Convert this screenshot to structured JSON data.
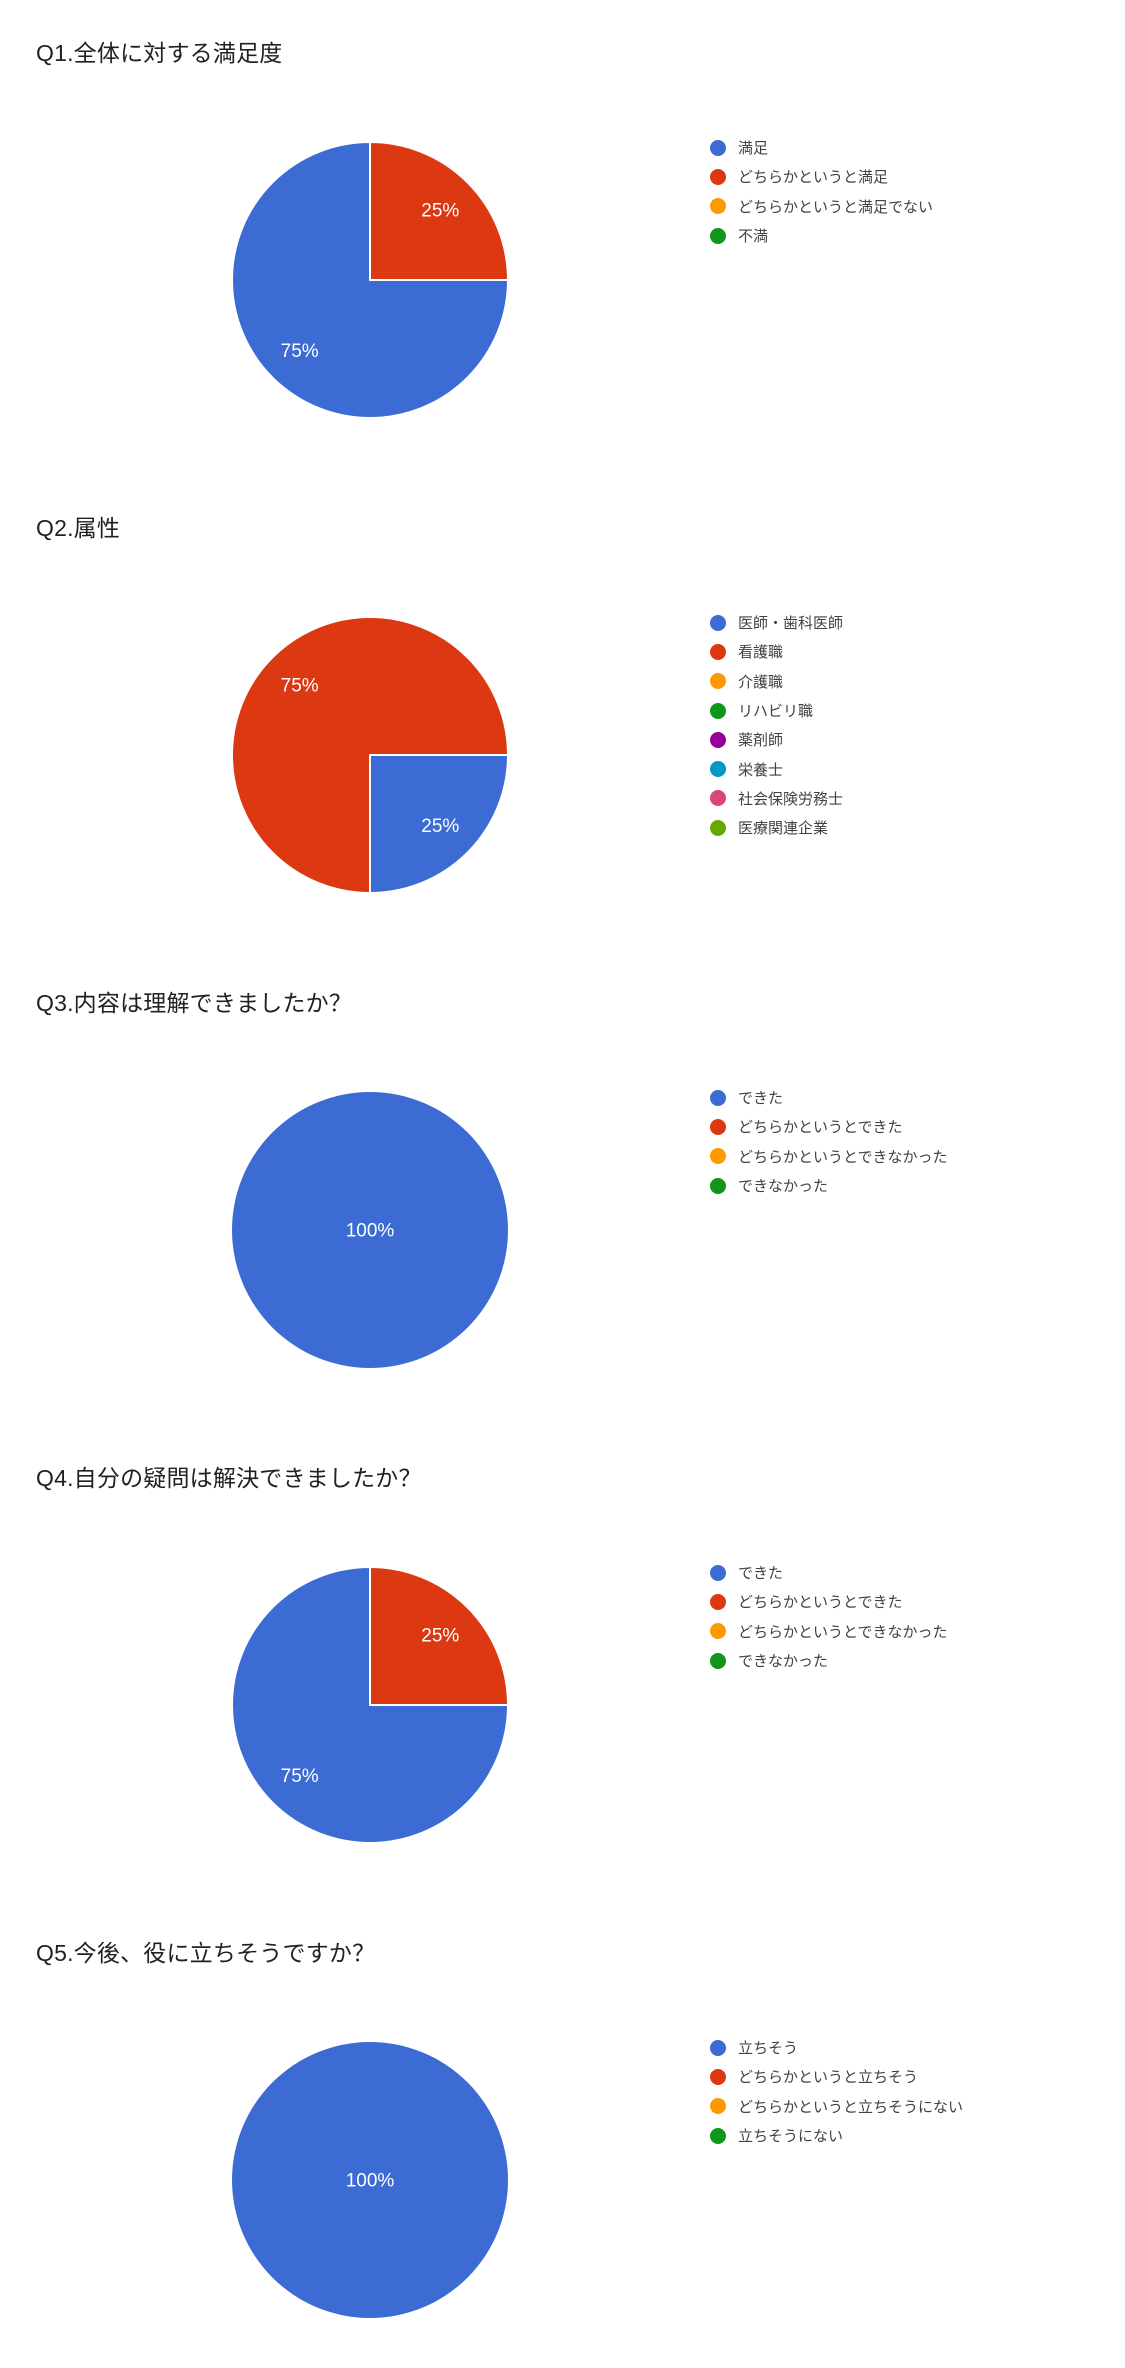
{
  "page": {
    "background_color": "#ffffff",
    "title_text_color": "#212121",
    "legend_text_color": "#424242",
    "slice_label_color": "#ffffff"
  },
  "chart_data": [
    {
      "type": "pie",
      "title": "Q1.全体に対する満足度",
      "legend_position": "right",
      "categories": [
        "満足",
        "どちらかというと満足",
        "どちらかというと満足でない",
        "不満"
      ],
      "values_pct": [
        75,
        25,
        0,
        0
      ],
      "colors": [
        "#3c6bd4",
        "#dc3912",
        "#ff9900",
        "#109618"
      ],
      "slices": [
        {
          "category": "満足",
          "pct": 75,
          "color": "#3c6bd4",
          "start_deg": 90,
          "sweep_deg": 270,
          "label": "75%",
          "label_angle_deg": 225,
          "label_r_frac": 0.72
        },
        {
          "category": "どちらかというと満足",
          "pct": 25,
          "color": "#dc3912",
          "start_deg": 0,
          "sweep_deg": 90,
          "label": "25%",
          "label_angle_deg": 45,
          "label_r_frac": 0.72
        }
      ]
    },
    {
      "type": "pie",
      "title": "Q2.属性",
      "legend_position": "right",
      "categories": [
        "医師・歯科医師",
        "看護職",
        "介護職",
        "リハビリ職",
        "薬剤師",
        "栄養士",
        "社会保険労務士",
        "医療関連企業"
      ],
      "values_pct": [
        25,
        75,
        0,
        0,
        0,
        0,
        0,
        0
      ],
      "colors": [
        "#3c6bd4",
        "#dc3912",
        "#ff9900",
        "#109618",
        "#990099",
        "#0099c6",
        "#dd4477",
        "#66aa00"
      ],
      "slices": [
        {
          "category": "看護職",
          "pct": 75,
          "color": "#dc3912",
          "start_deg": 180,
          "sweep_deg": 270,
          "label": "75%",
          "label_angle_deg": 315,
          "label_r_frac": 0.72
        },
        {
          "category": "医師・歯科医師",
          "pct": 25,
          "color": "#3c6bd4",
          "start_deg": 90,
          "sweep_deg": 90,
          "label": "25%",
          "label_angle_deg": 135,
          "label_r_frac": 0.72
        }
      ]
    },
    {
      "type": "pie",
      "title": "Q3.内容は理解できましたか？",
      "legend_position": "right",
      "categories": [
        "できた",
        "どちらかというとできた",
        "どちらかというとできなかった",
        "できなかった"
      ],
      "values_pct": [
        100,
        0,
        0,
        0
      ],
      "colors": [
        "#3c6bd4",
        "#dc3912",
        "#ff9900",
        "#109618"
      ],
      "slices": [
        {
          "category": "できた",
          "pct": 100,
          "color": "#3c6bd4",
          "start_deg": 0,
          "sweep_deg": 360,
          "label": "100%",
          "label_angle_deg": 0,
          "label_r_frac": 0
        }
      ]
    },
    {
      "type": "pie",
      "title": "Q4.自分の疑問は解決できましたか？",
      "legend_position": "right",
      "categories": [
        "できた",
        "どちらかというとできた",
        "どちらかというとできなかった",
        "できなかった"
      ],
      "values_pct": [
        75,
        25,
        0,
        0
      ],
      "colors": [
        "#3c6bd4",
        "#dc3912",
        "#ff9900",
        "#109618"
      ],
      "slices": [
        {
          "category": "できた",
          "pct": 75,
          "color": "#3c6bd4",
          "start_deg": 90,
          "sweep_deg": 270,
          "label": "75%",
          "label_angle_deg": 225,
          "label_r_frac": 0.72
        },
        {
          "category": "どちらかというとできた",
          "pct": 25,
          "color": "#dc3912",
          "start_deg": 0,
          "sweep_deg": 90,
          "label": "25%",
          "label_angle_deg": 45,
          "label_r_frac": 0.72
        }
      ]
    },
    {
      "type": "pie",
      "title": "Q5.今後、役に立ちそうですか？",
      "legend_position": "right",
      "categories": [
        "立ちそう",
        "どちらかというと立ちそう",
        "どちらかというと立ちそうにない",
        "立ちそうにない"
      ],
      "values_pct": [
        100,
        0,
        0,
        0
      ],
      "colors": [
        "#3c6bd4",
        "#dc3912",
        "#ff9900",
        "#109618"
      ],
      "slices": [
        {
          "category": "立ちそう",
          "pct": 100,
          "color": "#3c6bd4",
          "start_deg": 0,
          "sweep_deg": 360,
          "label": "100%",
          "label_angle_deg": 0,
          "label_r_frac": 0
        }
      ]
    }
  ]
}
